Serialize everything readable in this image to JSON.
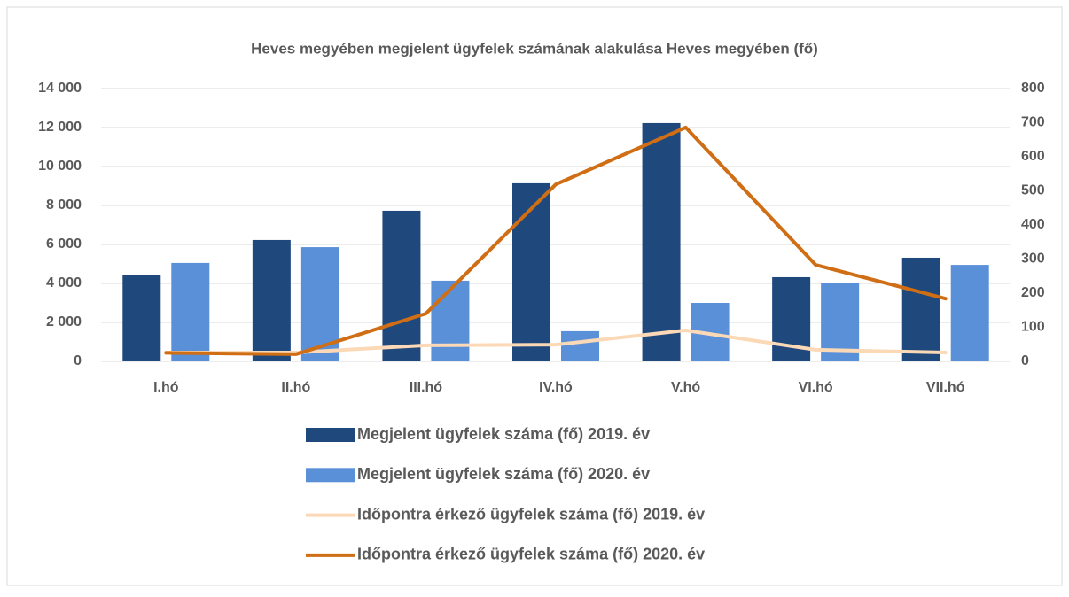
{
  "chart_data": {
    "type": "bar",
    "title": "Heves megyében megjelent ügyfelek számának alakulása Heves megyében (fő)",
    "categories": [
      "I.hó",
      "II.hó",
      "III.hó",
      "IV.hó",
      "V.hó",
      "VI.hó",
      "VII.hó"
    ],
    "series": [
      {
        "name": "Megjelent ügyfelek száma (fő) 2019. év",
        "type": "bar",
        "color": "#1f497d",
        "values": [
          4450,
          6230,
          7730,
          9140,
          12230,
          4320,
          5320
        ]
      },
      {
        "name": "Megjelent ügyfelek száma (fő) 2020. év",
        "type": "bar",
        "color": "#5a90d8",
        "values": [
          5050,
          5860,
          4140,
          1550,
          3000,
          4000,
          4950
        ]
      },
      {
        "name": "Időpontra érkező ügyfelek száma (fő) 2019. év",
        "type": "line",
        "axis": "y2",
        "color": "#fbd9b6",
        "values": [
          26,
          26,
          47,
          49,
          91,
          34,
          26
        ]
      },
      {
        "name": "Időpontra érkező ügyfelek száma (fő) 2020. év",
        "type": "line",
        "axis": "y2",
        "color": "#cf6e14",
        "values": [
          25,
          21,
          140,
          519,
          686,
          283,
          184
        ]
      }
    ],
    "ylim": [
      0,
      14000
    ],
    "yticks": [
      0,
      {
        "value": 2000,
        "label": "2 000"
      },
      {
        "value": 4000,
        "label": "4 000"
      },
      {
        "value": 6000,
        "label": "6 000"
      },
      {
        "value": 8000,
        "label": "8 000"
      },
      {
        "value": 10000,
        "label": "10 000"
      },
      {
        "value": 12000,
        "label": "12 000"
      },
      {
        "value": 14000,
        "label": "14 000"
      }
    ],
    "y2lim": [
      0,
      800
    ],
    "y2ticks": [
      0,
      100,
      200,
      300,
      400,
      500,
      600,
      700,
      800
    ],
    "grid": true
  }
}
